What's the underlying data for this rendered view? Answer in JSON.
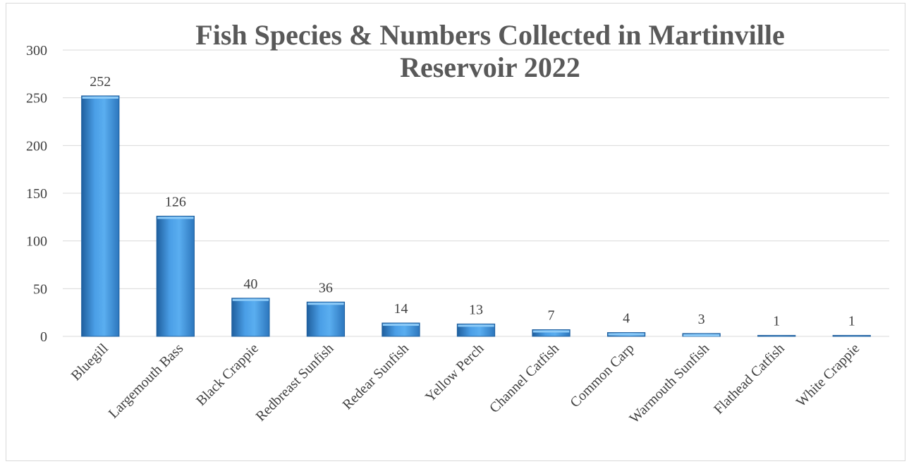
{
  "chart_data": {
    "type": "bar",
    "title": "Fish Species & Numbers Collected in Martinville Reservoir 2022",
    "title_lines": [
      "Fish Species & Numbers Collected in Martinville",
      "Reservoir 2022"
    ],
    "xlabel": "",
    "ylabel": "",
    "ylim": [
      0,
      300
    ],
    "yticks": [
      0,
      50,
      100,
      150,
      200,
      250,
      300
    ],
    "grid": true,
    "legend": "none",
    "categories": [
      "Bluegill",
      "Largemouth Bass",
      "Black Crappie",
      "Redbreast Sunfish",
      "Redear Sunfish",
      "Yellow Perch",
      "Channel Catfish",
      "Common Carp",
      "Warmouth Sunfish",
      "Flathead Catfish",
      "White Crappie"
    ],
    "values": [
      252,
      126,
      40,
      36,
      14,
      13,
      7,
      4,
      3,
      1,
      1
    ],
    "colors": {
      "bar_light": "#5aaef0",
      "bar_dark": "#1f5f9e",
      "bar_top": "#8ccaf7"
    }
  }
}
